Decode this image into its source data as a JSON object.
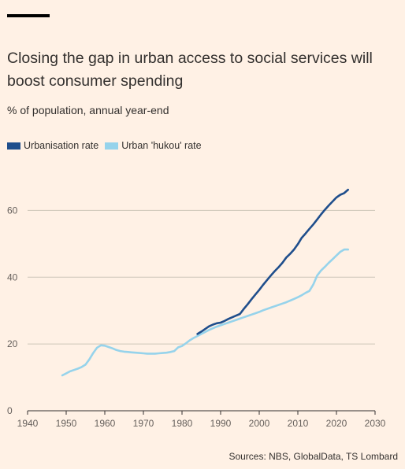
{
  "chart_data": {
    "type": "line",
    "title": "Closing the gap in urban access to social services will boost consumer spending",
    "subtitle": "% of population, annual year-end",
    "xlabel": "",
    "ylabel": "",
    "xlim": [
      1940,
      2030
    ],
    "ylim": [
      0,
      70
    ],
    "x_ticks": [
      1940,
      1950,
      1960,
      1970,
      1980,
      1990,
      2000,
      2010,
      2020,
      2030
    ],
    "y_ticks": [
      0,
      20,
      40,
      60
    ],
    "grid": true,
    "legend_position": "top-left",
    "series": [
      {
        "name": "Urbanisation rate",
        "color": "#1F4E8C",
        "x": [
          1984,
          1985,
          1986,
          1987,
          1988,
          1989,
          1990,
          1991,
          1992,
          1993,
          1994,
          1995,
          1996,
          1997,
          1998,
          1999,
          2000,
          2001,
          2002,
          2003,
          2004,
          2005,
          2006,
          2007,
          2008,
          2009,
          2010,
          2011,
          2012,
          2013,
          2014,
          2015,
          2016,
          2017,
          2018,
          2019,
          2020,
          2021,
          2022,
          2023
        ],
        "values": [
          23.0,
          23.7,
          24.5,
          25.3,
          25.8,
          26.2,
          26.4,
          26.9,
          27.5,
          28.0,
          28.5,
          29.0,
          30.5,
          31.9,
          33.4,
          34.8,
          36.2,
          37.7,
          39.1,
          40.5,
          41.8,
          43.0,
          44.3,
          45.9,
          47.0,
          48.3,
          49.9,
          51.8,
          53.1,
          54.5,
          55.8,
          57.3,
          58.8,
          60.2,
          61.5,
          62.7,
          63.9,
          64.7,
          65.2,
          66.2
        ]
      },
      {
        "name": "Urban 'hukou' rate",
        "color": "#96D3EB",
        "x": [
          1949,
          1950,
          1951,
          1952,
          1953,
          1954,
          1955,
          1956,
          1957,
          1958,
          1959,
          1960,
          1961,
          1962,
          1963,
          1964,
          1965,
          1966,
          1967,
          1968,
          1969,
          1970,
          1971,
          1972,
          1973,
          1974,
          1975,
          1976,
          1977,
          1978,
          1979,
          1980,
          1981,
          1982,
          1983,
          1984,
          1985,
          1986,
          1987,
          1988,
          1989,
          1990,
          1991,
          1992,
          1993,
          1994,
          1995,
          1996,
          1997,
          1998,
          1999,
          2000,
          2001,
          2002,
          2003,
          2004,
          2005,
          2006,
          2007,
          2008,
          2009,
          2010,
          2011,
          2012,
          2013,
          2014,
          2015,
          2016,
          2017,
          2018,
          2019,
          2020,
          2021,
          2022,
          2023
        ],
        "values": [
          10.6,
          11.2,
          11.8,
          12.2,
          12.6,
          13.1,
          13.8,
          15.4,
          17.3,
          18.9,
          19.6,
          19.5,
          19.1,
          18.7,
          18.2,
          17.9,
          17.7,
          17.6,
          17.5,
          17.4,
          17.3,
          17.2,
          17.1,
          17.1,
          17.1,
          17.2,
          17.3,
          17.4,
          17.6,
          17.9,
          19.0,
          19.4,
          20.2,
          21.1,
          21.8,
          22.4,
          23.0,
          23.6,
          24.2,
          24.7,
          25.2,
          25.6,
          26.0,
          26.4,
          26.8,
          27.2,
          27.6,
          28.0,
          28.4,
          28.8,
          29.2,
          29.6,
          30.1,
          30.5,
          30.9,
          31.3,
          31.7,
          32.1,
          32.5,
          33.0,
          33.5,
          34.0,
          34.6,
          35.3,
          35.9,
          37.8,
          40.5,
          42.0,
          43.1,
          44.3,
          45.4,
          46.5,
          47.6,
          48.3,
          48.3
        ]
      }
    ],
    "source": "Sources: NBS, GlobalData, TS Lombard"
  }
}
